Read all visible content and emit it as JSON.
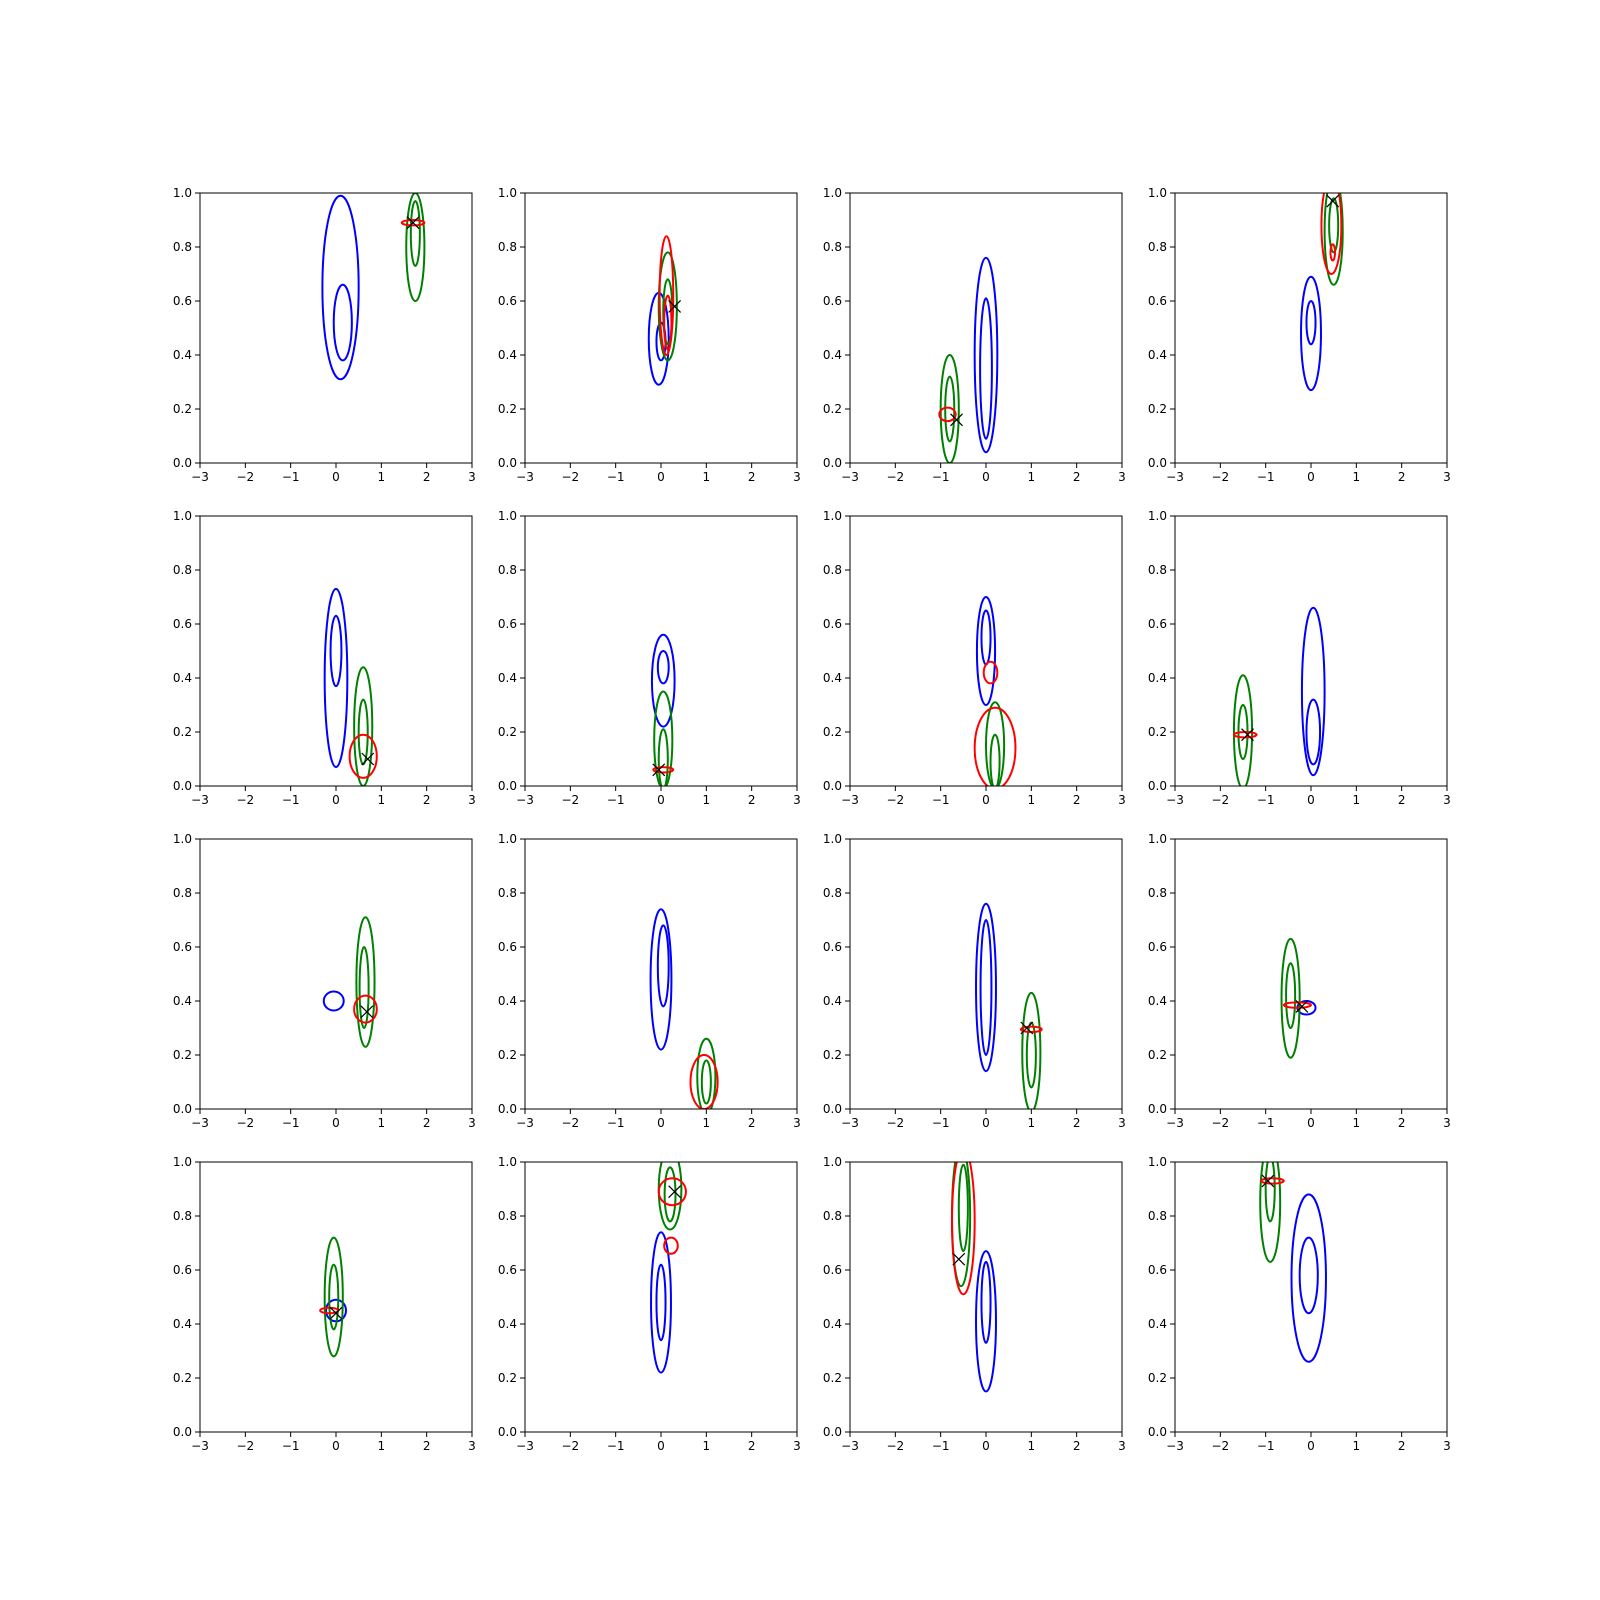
{
  "chart_data": {
    "type": "contour-grid",
    "rows": 4,
    "cols": 4,
    "xlim": [
      -3,
      3
    ],
    "ylim": [
      0,
      1
    ],
    "xticks": [
      -3,
      -2,
      -1,
      0,
      1,
      2,
      3
    ],
    "yticks": [
      0.0,
      0.2,
      0.4,
      0.6,
      0.8,
      1.0
    ],
    "xtick_labels": [
      "−3",
      "−2",
      "−1",
      "0",
      "1",
      "2",
      "3"
    ],
    "ytick_labels": [
      "0.0",
      "0.2",
      "0.4",
      "0.6",
      "0.8",
      "1.0"
    ],
    "colors": {
      "blue": "#0000ff",
      "green": "#008000",
      "red": "#ff0000",
      "marker": "#000000"
    },
    "panels": [
      {
        "blue": [
          {
            "cx": 0.1,
            "cy": 0.65,
            "rx": 0.4,
            "ry": 0.34
          },
          {
            "cx": 0.15,
            "cy": 0.52,
            "rx": 0.2,
            "ry": 0.14
          }
        ],
        "green": [
          {
            "cx": 1.75,
            "cy": 0.8,
            "rx": 0.2,
            "ry": 0.2
          },
          {
            "cx": 1.75,
            "cy": 0.85,
            "rx": 0.1,
            "ry": 0.12
          }
        ],
        "red": [
          {
            "cx": 1.7,
            "cy": 0.89,
            "rx": 0.25,
            "ry": 0.01
          }
        ],
        "marker": {
          "x": 1.7,
          "y": 0.89
        }
      },
      {
        "blue": [
          {
            "cx": -0.05,
            "cy": 0.46,
            "rx": 0.22,
            "ry": 0.17
          },
          {
            "cx": 0,
            "cy": 0.45,
            "rx": 0.1,
            "ry": 0.07
          }
        ],
        "green": [
          {
            "cx": 0.15,
            "cy": 0.58,
            "rx": 0.2,
            "ry": 0.2
          },
          {
            "cx": 0.15,
            "cy": 0.56,
            "rx": 0.1,
            "ry": 0.12
          }
        ],
        "red": [
          {
            "cx": 0.12,
            "cy": 0.62,
            "rx": 0.15,
            "ry": 0.22
          },
          {
            "cx": 0.15,
            "cy": 0.52,
            "rx": 0.08,
            "ry": 0.1
          }
        ],
        "marker": {
          "x": 0.3,
          "y": 0.58
        }
      },
      {
        "blue": [
          {
            "cx": 0,
            "cy": 0.4,
            "rx": 0.25,
            "ry": 0.36
          },
          {
            "cx": 0,
            "cy": 0.35,
            "rx": 0.13,
            "ry": 0.26
          }
        ],
        "green": [
          {
            "cx": -0.8,
            "cy": 0.2,
            "rx": 0.2,
            "ry": 0.2
          },
          {
            "cx": -0.8,
            "cy": 0.2,
            "rx": 0.1,
            "ry": 0.12
          }
        ],
        "red": [
          {
            "cx": -0.85,
            "cy": 0.18,
            "rx": 0.18,
            "ry": 0.025
          }
        ],
        "marker": {
          "x": -0.65,
          "y": 0.16
        }
      },
      {
        "blue": [
          {
            "cx": 0,
            "cy": 0.48,
            "rx": 0.22,
            "ry": 0.21
          },
          {
            "cx": 0,
            "cy": 0.52,
            "rx": 0.1,
            "ry": 0.08
          }
        ],
        "green": [
          {
            "cx": 0.5,
            "cy": 0.86,
            "rx": 0.2,
            "ry": 0.2
          },
          {
            "cx": 0.5,
            "cy": 0.88,
            "rx": 0.1,
            "ry": 0.1
          }
        ],
        "red": [
          {
            "cx": 0.45,
            "cy": 0.88,
            "rx": 0.22,
            "ry": 0.18
          },
          {
            "cx": 0.48,
            "cy": 0.78,
            "rx": 0.05,
            "ry": 0.03
          }
        ],
        "marker": {
          "x": 0.48,
          "y": 0.97
        }
      },
      {
        "blue": [
          {
            "cx": 0,
            "cy": 0.4,
            "rx": 0.25,
            "ry": 0.33
          },
          {
            "cx": 0,
            "cy": 0.5,
            "rx": 0.12,
            "ry": 0.13
          }
        ],
        "green": [
          {
            "cx": 0.6,
            "cy": 0.22,
            "rx": 0.2,
            "ry": 0.22
          },
          {
            "cx": 0.6,
            "cy": 0.2,
            "rx": 0.1,
            "ry": 0.12
          }
        ],
        "red": [
          {
            "cx": 0.6,
            "cy": 0.11,
            "rx": 0.3,
            "ry": 0.08
          }
        ],
        "marker": {
          "x": 0.7,
          "y": 0.1
        }
      },
      {
        "blue": [
          {
            "cx": 0.05,
            "cy": 0.39,
            "rx": 0.25,
            "ry": 0.17
          },
          {
            "cx": 0.05,
            "cy": 0.44,
            "rx": 0.12,
            "ry": 0.06
          }
        ],
        "green": [
          {
            "cx": 0.05,
            "cy": 0.17,
            "rx": 0.2,
            "ry": 0.18
          },
          {
            "cx": 0.05,
            "cy": 0.1,
            "rx": 0.1,
            "ry": 0.11
          }
        ],
        "red": [
          {
            "cx": 0.05,
            "cy": 0.06,
            "rx": 0.22,
            "ry": 0.01
          }
        ],
        "marker": {
          "x": -0.05,
          "y": 0.06
        }
      },
      {
        "blue": [
          {
            "cx": 0,
            "cy": 0.5,
            "rx": 0.2,
            "ry": 0.2
          },
          {
            "cx": 0,
            "cy": 0.55,
            "rx": 0.1,
            "ry": 0.1
          }
        ],
        "green": [
          {
            "cx": 0.2,
            "cy": 0.15,
            "rx": 0.2,
            "ry": 0.16
          },
          {
            "cx": 0.2,
            "cy": 0.09,
            "rx": 0.1,
            "ry": 0.1
          }
        ],
        "red": [
          {
            "cx": 0.2,
            "cy": 0.14,
            "rx": 0.45,
            "ry": 0.15
          },
          {
            "cx": 0.1,
            "cy": 0.42,
            "rx": 0.15,
            "ry": 0.04
          }
        ],
        "marker": null
      },
      {
        "blue": [
          {
            "cx": 0.05,
            "cy": 0.35,
            "rx": 0.25,
            "ry": 0.31
          },
          {
            "cx": 0.05,
            "cy": 0.2,
            "rx": 0.15,
            "ry": 0.12
          }
        ],
        "green": [
          {
            "cx": -1.5,
            "cy": 0.2,
            "rx": 0.2,
            "ry": 0.21
          },
          {
            "cx": -1.5,
            "cy": 0.2,
            "rx": 0.1,
            "ry": 0.1
          }
        ],
        "red": [
          {
            "cx": -1.45,
            "cy": 0.19,
            "rx": 0.25,
            "ry": 0.01
          }
        ],
        "marker": {
          "x": -1.4,
          "y": 0.19
        }
      },
      {
        "blue": [
          {
            "cx": -0.05,
            "cy": 0.4,
            "rx": 0.22,
            "ry": 0.035
          }
        ],
        "green": [
          {
            "cx": 0.65,
            "cy": 0.47,
            "rx": 0.2,
            "ry": 0.24
          },
          {
            "cx": 0.62,
            "cy": 0.45,
            "rx": 0.1,
            "ry": 0.15
          }
        ],
        "red": [
          {
            "cx": 0.65,
            "cy": 0.37,
            "rx": 0.25,
            "ry": 0.05
          }
        ],
        "marker": {
          "x": 0.68,
          "y": 0.36
        }
      },
      {
        "blue": [
          {
            "cx": 0,
            "cy": 0.48,
            "rx": 0.23,
            "ry": 0.26
          },
          {
            "cx": 0.05,
            "cy": 0.53,
            "rx": 0.12,
            "ry": 0.15
          }
        ],
        "green": [
          {
            "cx": 1,
            "cy": 0.12,
            "rx": 0.2,
            "ry": 0.14
          },
          {
            "cx": 1,
            "cy": 0.1,
            "rx": 0.1,
            "ry": 0.08
          }
        ],
        "red": [
          {
            "cx": 0.95,
            "cy": 0.1,
            "rx": 0.3,
            "ry": 0.1
          }
        ],
        "marker": null
      },
      {
        "blue": [
          {
            "cx": 0,
            "cy": 0.45,
            "rx": 0.22,
            "ry": 0.31
          },
          {
            "cx": 0,
            "cy": 0.45,
            "rx": 0.12,
            "ry": 0.25
          }
        ],
        "green": [
          {
            "cx": 1,
            "cy": 0.21,
            "rx": 0.2,
            "ry": 0.22
          },
          {
            "cx": 1,
            "cy": 0.2,
            "rx": 0.1,
            "ry": 0.12
          }
        ],
        "red": [
          {
            "cx": 1,
            "cy": 0.295,
            "rx": 0.23,
            "ry": 0.01
          }
        ],
        "marker": {
          "x": 0.9,
          "y": 0.3
        }
      },
      {
        "blue": [
          {
            "cx": -0.1,
            "cy": 0.375,
            "rx": 0.2,
            "ry": 0.025
          }
        ],
        "green": [
          {
            "cx": -0.45,
            "cy": 0.41,
            "rx": 0.2,
            "ry": 0.22
          },
          {
            "cx": -0.45,
            "cy": 0.42,
            "rx": 0.1,
            "ry": 0.12
          }
        ],
        "red": [
          {
            "cx": -0.3,
            "cy": 0.385,
            "rx": 0.3,
            "ry": 0.01
          }
        ],
        "marker": {
          "x": -0.2,
          "y": 0.38
        }
      },
      {
        "blue": [
          {
            "cx": 0,
            "cy": 0.45,
            "rx": 0.22,
            "ry": 0.04
          }
        ],
        "green": [
          {
            "cx": -0.05,
            "cy": 0.5,
            "rx": 0.2,
            "ry": 0.22
          },
          {
            "cx": -0.05,
            "cy": 0.5,
            "rx": 0.1,
            "ry": 0.12
          }
        ],
        "red": [
          {
            "cx": -0.15,
            "cy": 0.45,
            "rx": 0.2,
            "ry": 0.01
          }
        ],
        "marker": {
          "x": 0,
          "y": 0.44
        }
      },
      {
        "blue": [
          {
            "cx": 0,
            "cy": 0.48,
            "rx": 0.22,
            "ry": 0.26
          },
          {
            "cx": 0,
            "cy": 0.48,
            "rx": 0.1,
            "ry": 0.14
          }
        ],
        "green": [
          {
            "cx": 0.2,
            "cy": 0.9,
            "rx": 0.25,
            "ry": 0.15
          },
          {
            "cx": 0.2,
            "cy": 0.88,
            "rx": 0.12,
            "ry": 0.1
          }
        ],
        "red": [
          {
            "cx": 0.25,
            "cy": 0.89,
            "rx": 0.3,
            "ry": 0.05
          },
          {
            "cx": 0.22,
            "cy": 0.69,
            "rx": 0.15,
            "ry": 0.03
          }
        ],
        "marker": {
          "x": 0.3,
          "y": 0.89
        }
      },
      {
        "blue": [
          {
            "cx": 0,
            "cy": 0.41,
            "rx": 0.22,
            "ry": 0.26
          },
          {
            "cx": 0,
            "cy": 0.48,
            "rx": 0.1,
            "ry": 0.15
          }
        ],
        "green": [
          {
            "cx": -0.55,
            "cy": 0.8,
            "rx": 0.2,
            "ry": 0.26
          },
          {
            "cx": -0.5,
            "cy": 0.83,
            "rx": 0.1,
            "ry": 0.16
          }
        ],
        "red": [
          {
            "cx": -0.5,
            "cy": 0.78,
            "rx": 0.25,
            "ry": 0.27
          }
        ],
        "marker": {
          "x": -0.6,
          "y": 0.64
        }
      },
      {
        "blue": [
          {
            "cx": -0.05,
            "cy": 0.57,
            "rx": 0.38,
            "ry": 0.31
          },
          {
            "cx": -0.05,
            "cy": 0.58,
            "rx": 0.2,
            "ry": 0.14
          }
        ],
        "green": [
          {
            "cx": -0.9,
            "cy": 0.85,
            "rx": 0.22,
            "ry": 0.22
          },
          {
            "cx": -0.9,
            "cy": 0.9,
            "rx": 0.1,
            "ry": 0.12
          }
        ],
        "red": [
          {
            "cx": -0.85,
            "cy": 0.93,
            "rx": 0.25,
            "ry": 0.01
          }
        ],
        "marker": {
          "x": -0.95,
          "y": 0.93
        }
      }
    ]
  }
}
